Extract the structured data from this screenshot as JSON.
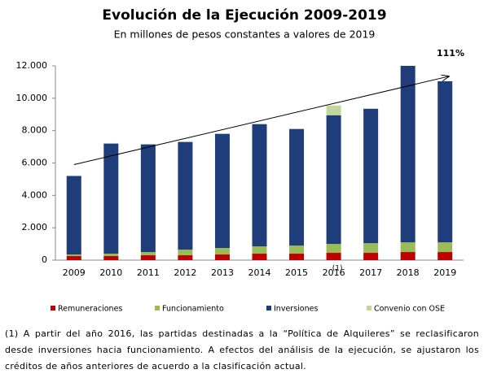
{
  "chart_data": {
    "type": "stacked-bar",
    "title": "Evolución de la Ejecución 2009-2019",
    "subtitle": "En millones de pesos constantes a valores de 2019",
    "categories": [
      "2009",
      "2010",
      "2011",
      "2012",
      "2013",
      "2014",
      "2015",
      "2016",
      "2017",
      "2018",
      "2019"
    ],
    "series": [
      {
        "name": "Remuneraciones",
        "color": "#c00000",
        "values": [
          250,
          250,
          300,
          300,
          350,
          400,
          400,
          450,
          450,
          500,
          500
        ]
      },
      {
        "name": "Funcionamiento",
        "color": "#9bbb59",
        "values": [
          100,
          150,
          200,
          350,
          400,
          450,
          500,
          550,
          600,
          600,
          600
        ]
      },
      {
        "name": "Inversiones",
        "color": "#1f3d7a",
        "values": [
          4850,
          6800,
          6650,
          6650,
          7050,
          7550,
          7200,
          7950,
          8300,
          10900,
          9950
        ]
      },
      {
        "name": "Convenio con OSE",
        "color": "#c3d69b",
        "values": [
          null,
          null,
          null,
          null,
          null,
          null,
          null,
          600,
          null,
          null,
          null
        ]
      }
    ],
    "ylim": [
      0,
      12000
    ],
    "yticks": [
      0,
      {
        "value": 2000,
        "label": "2.000"
      },
      {
        "value": 4000,
        "label": "4.000"
      },
      {
        "value": 6000,
        "label": "6.000"
      },
      {
        "value": 8000,
        "label": "8.000"
      },
      {
        "value": 10000,
        "label": "10.000"
      },
      {
        "value": 12000,
        "label": "12.000"
      }
    ],
    "annotations": [
      "111%",
      "(1)"
    ],
    "footnote": "(1) A partir del año 2016, las partidas destinadas a la “Política de Alquileres” se reclasificaron desde inversiones hacia funcionamiento. A efectos del análisis de la ejecución, se ajustaron los créditos de años anteriores de acuerdo a la clasificación actual."
  }
}
